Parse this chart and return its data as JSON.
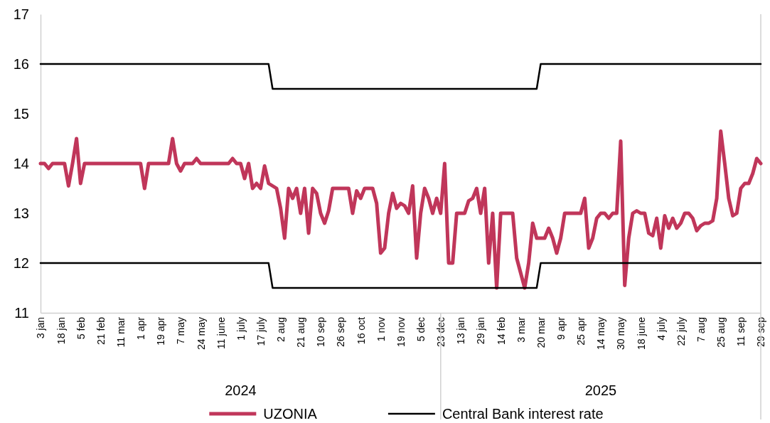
{
  "chart_data": {
    "type": "line",
    "categories": [
      "3 jan",
      null,
      null,
      null,
      null,
      "18 jan",
      null,
      null,
      null,
      null,
      "5 feb",
      null,
      null,
      null,
      null,
      "21 feb",
      null,
      null,
      null,
      null,
      "11 mar",
      null,
      null,
      null,
      null,
      "1 apr",
      null,
      null,
      null,
      null,
      "19 apr",
      null,
      null,
      null,
      null,
      "7 may",
      null,
      null,
      null,
      null,
      "24 may",
      null,
      null,
      null,
      null,
      "11 june",
      null,
      null,
      null,
      null,
      "1 july",
      null,
      null,
      null,
      null,
      "17 july",
      null,
      null,
      null,
      null,
      "2 aug",
      null,
      null,
      null,
      null,
      "21 aug",
      null,
      null,
      null,
      null,
      "10 sep",
      null,
      null,
      null,
      null,
      "26 sep",
      null,
      null,
      null,
      null,
      "16 oct",
      null,
      null,
      null,
      null,
      "1 nov",
      null,
      null,
      null,
      null,
      "19 nov",
      null,
      null,
      null,
      null,
      "5 dec",
      null,
      null,
      null,
      null,
      "23 dec",
      null,
      null,
      null,
      null,
      "13 jan",
      null,
      null,
      null,
      null,
      "29 jan",
      null,
      null,
      null,
      null,
      "14 feb",
      null,
      null,
      null,
      null,
      "3 mar",
      null,
      null,
      null,
      null,
      "20 mar",
      null,
      null,
      null,
      null,
      "9 apr",
      null,
      null,
      null,
      null,
      "25 apr",
      null,
      null,
      null,
      null,
      "14 may",
      null,
      null,
      null,
      null,
      "30 may",
      null,
      null,
      null,
      null,
      "18 june",
      null,
      null,
      null,
      null,
      "4 july",
      null,
      null,
      null,
      null,
      "22 july",
      null,
      null,
      null,
      null,
      "7 aug",
      null,
      null,
      null,
      null,
      "25 aug",
      null,
      null,
      null,
      null,
      "11 sep",
      null,
      null,
      null,
      null,
      "29 sep"
    ],
    "series": [
      {
        "name": "UZONIA",
        "color": "#c0365a",
        "values": [
          14,
          14,
          13.9,
          14,
          14,
          14,
          14,
          13.55,
          14,
          14.5,
          13.6,
          14,
          14,
          14,
          14,
          14,
          14,
          14,
          14,
          14,
          14,
          14,
          14,
          14,
          14,
          14,
          13.5,
          14,
          14,
          14,
          14,
          14,
          14,
          14.5,
          14,
          13.85,
          14,
          14,
          14,
          14.1,
          14,
          14,
          14,
          14,
          14,
          14,
          14,
          14,
          14.1,
          14,
          14,
          13.7,
          14,
          13.5,
          13.6,
          13.5,
          13.95,
          13.6,
          13.55,
          13.5,
          13.1,
          12.5,
          13.5,
          13.3,
          13.5,
          13,
          13.5,
          12.6,
          13.5,
          13.4,
          13,
          12.8,
          13.05,
          13.5,
          13.5,
          13.5,
          13.5,
          13.5,
          13,
          13.45,
          13.3,
          13.5,
          13.5,
          13.5,
          13.2,
          12.2,
          12.3,
          13,
          13.4,
          13.1,
          13.2,
          13.15,
          13,
          13.55,
          12.1,
          13,
          13.5,
          13.3,
          13,
          13.3,
          13,
          14,
          12,
          12,
          13,
          13,
          13,
          13.25,
          13.3,
          13.5,
          13,
          13.5,
          12,
          13,
          11.5,
          13,
          13,
          13,
          13,
          12.1,
          11.8,
          11.5,
          12,
          12.8,
          12.5,
          12.5,
          12.5,
          12.7,
          12.5,
          12.2,
          12.5,
          13,
          13,
          13,
          13,
          13,
          13.3,
          12.3,
          12.5,
          12.9,
          13,
          13,
          12.9,
          13,
          13,
          14.45,
          11.55,
          12.5,
          13,
          13.05,
          13,
          13,
          12.6,
          12.55,
          12.9,
          12.3,
          12.95,
          12.7,
          12.9,
          12.7,
          12.8,
          13,
          13,
          12.9,
          12.65,
          12.75,
          12.8,
          12.8,
          12.85,
          13.3,
          14.65,
          14,
          13.3,
          12.95,
          13,
          13.5,
          13.6,
          13.6,
          13.8,
          14.1,
          14
        ]
      },
      {
        "name": "Central Bank interest rate",
        "color": "#000000",
        "values": [
          16,
          16,
          16,
          16,
          16,
          16,
          16,
          16,
          16,
          16,
          16,
          16,
          16,
          16,
          16,
          16,
          16,
          16,
          16,
          16,
          16,
          16,
          16,
          16,
          16,
          16,
          16,
          16,
          16,
          16,
          16,
          16,
          16,
          16,
          16,
          16,
          16,
          16,
          16,
          16,
          16,
          16,
          16,
          16,
          16,
          16,
          16,
          16,
          16,
          16,
          16,
          16,
          16,
          16,
          16,
          16,
          16,
          16,
          15.5,
          15.5,
          15.5,
          15.5,
          15.5,
          15.5,
          15.5,
          15.5,
          15.5,
          15.5,
          15.5,
          15.5,
          15.5,
          15.5,
          15.5,
          15.5,
          15.5,
          15.5,
          15.5,
          15.5,
          15.5,
          15.5,
          15.5,
          15.5,
          15.5,
          15.5,
          15.5,
          15.5,
          15.5,
          15.5,
          15.5,
          15.5,
          15.5,
          15.5,
          15.5,
          15.5,
          15.5,
          15.5,
          15.5,
          15.5,
          15.5,
          15.5,
          15.5,
          15.5,
          15.5,
          15.5,
          15.5,
          15.5,
          15.5,
          15.5,
          15.5,
          15.5,
          15.5,
          15.5,
          15.5,
          15.5,
          15.5,
          15.5,
          15.5,
          15.5,
          15.5,
          15.5,
          15.5,
          15.5,
          15.5,
          15.5,
          15.5,
          16,
          16,
          16,
          16,
          16,
          16,
          16,
          16,
          16,
          16,
          16,
          16,
          16,
          16,
          16,
          16,
          16,
          16,
          16,
          16,
          16,
          16,
          16,
          16,
          16,
          16,
          16,
          16,
          16,
          16,
          16,
          16,
          16,
          16,
          16,
          16,
          16,
          16,
          16,
          16,
          16,
          16,
          16,
          16,
          16,
          16,
          16,
          16,
          16,
          16,
          16,
          16,
          16,
          16,
          16,
          16
        ]
      },
      {
        "color": "#000000",
        "values": [
          12,
          12,
          12,
          12,
          12,
          12,
          12,
          12,
          12,
          12,
          12,
          12,
          12,
          12,
          12,
          12,
          12,
          12,
          12,
          12,
          12,
          12,
          12,
          12,
          12,
          12,
          12,
          12,
          12,
          12,
          12,
          12,
          12,
          12,
          12,
          12,
          12,
          12,
          12,
          12,
          12,
          12,
          12,
          12,
          12,
          12,
          12,
          12,
          12,
          12,
          12,
          12,
          12,
          12,
          12,
          12,
          12,
          12,
          11.5,
          11.5,
          11.5,
          11.5,
          11.5,
          11.5,
          11.5,
          11.5,
          11.5,
          11.5,
          11.5,
          11.5,
          11.5,
          11.5,
          11.5,
          11.5,
          11.5,
          11.5,
          11.5,
          11.5,
          11.5,
          11.5,
          11.5,
          11.5,
          11.5,
          11.5,
          11.5,
          11.5,
          11.5,
          11.5,
          11.5,
          11.5,
          11.5,
          11.5,
          11.5,
          11.5,
          11.5,
          11.5,
          11.5,
          11.5,
          11.5,
          11.5,
          11.5,
          11.5,
          11.5,
          11.5,
          11.5,
          11.5,
          11.5,
          11.5,
          11.5,
          11.5,
          11.5,
          11.5,
          11.5,
          11.5,
          11.5,
          11.5,
          11.5,
          11.5,
          11.5,
          11.5,
          11.5,
          11.5,
          11.5,
          11.5,
          11.5,
          12,
          12,
          12,
          12,
          12,
          12,
          12,
          12,
          12,
          12,
          12,
          12,
          12,
          12,
          12,
          12,
          12,
          12,
          12,
          12,
          12,
          12,
          12,
          12,
          12,
          12,
          12,
          12,
          12,
          12,
          12,
          12,
          12,
          12,
          12,
          12,
          12,
          12,
          12,
          12,
          12,
          12,
          12,
          12,
          12,
          12,
          12,
          12,
          12,
          12,
          12,
          12,
          12,
          12,
          12,
          12
        ]
      }
    ],
    "ylim": [
      11,
      17
    ],
    "yticks": [
      11,
      12,
      13,
      14,
      15,
      16,
      17
    ],
    "legend": "bottom",
    "annotations": [
      "2024",
      "2025"
    ]
  }
}
